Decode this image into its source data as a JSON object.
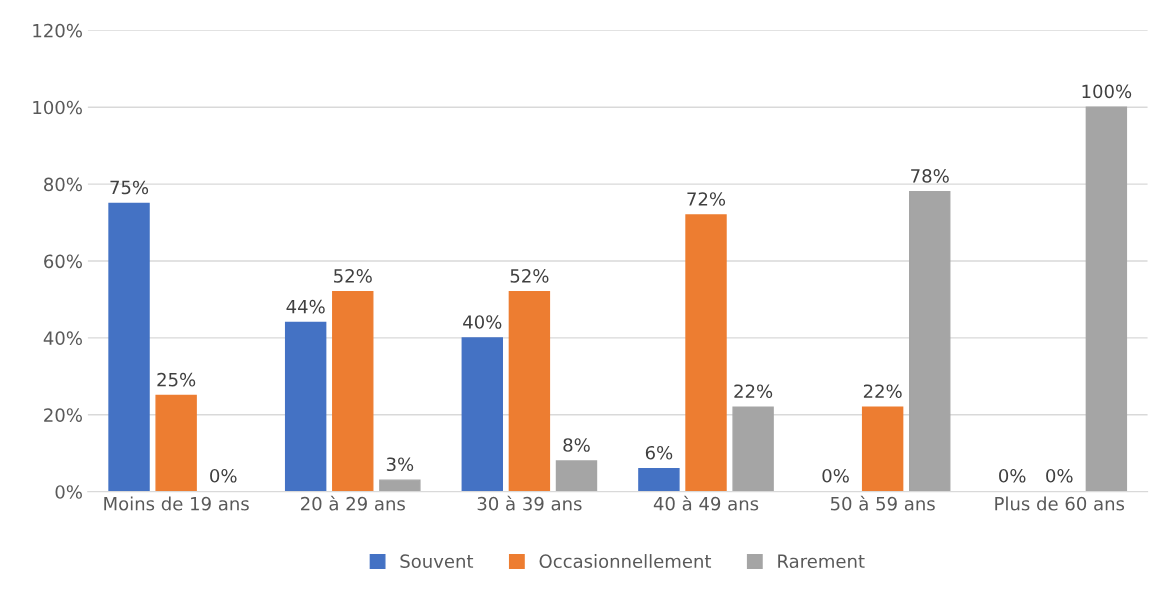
{
  "chart_data": {
    "type": "bar",
    "categories": [
      "Moins de 19 ans",
      "20 à 29 ans",
      "30 à 39 ans",
      "40 à 49 ans",
      "50 à 59 ans",
      "Plus de 60 ans"
    ],
    "series": [
      {
        "name": "Souvent",
        "color": "#4472c4",
        "values": [
          75,
          44,
          40,
          6,
          0,
          0
        ],
        "value_labels": [
          "75%",
          "44%",
          "40%",
          "6%",
          "0%",
          "0%"
        ]
      },
      {
        "name": "Occasionnellement",
        "color": "#ed7d31",
        "values": [
          25,
          52,
          52,
          72,
          22,
          0
        ],
        "value_labels": [
          "25%",
          "52%",
          "52%",
          "72%",
          "22%",
          "0%"
        ]
      },
      {
        "name": "Rarement",
        "color": "#a5a5a5",
        "values": [
          0,
          3,
          8,
          22,
          78,
          100
        ],
        "value_labels": [
          "0%",
          "3%",
          "8%",
          "22%",
          "78%",
          "100%"
        ]
      }
    ],
    "ylim": [
      0,
      120
    ],
    "yticks": [
      {
        "value": 0,
        "label": "0%"
      },
      {
        "value": 20,
        "label": "20%"
      },
      {
        "value": 40,
        "label": "40%"
      },
      {
        "value": 60,
        "label": "60%"
      },
      {
        "value": 80,
        "label": "80%"
      },
      {
        "value": 100,
        "label": "100%"
      },
      {
        "value": 120,
        "label": "120%"
      }
    ],
    "grid": "y",
    "legend": "bottom"
  }
}
